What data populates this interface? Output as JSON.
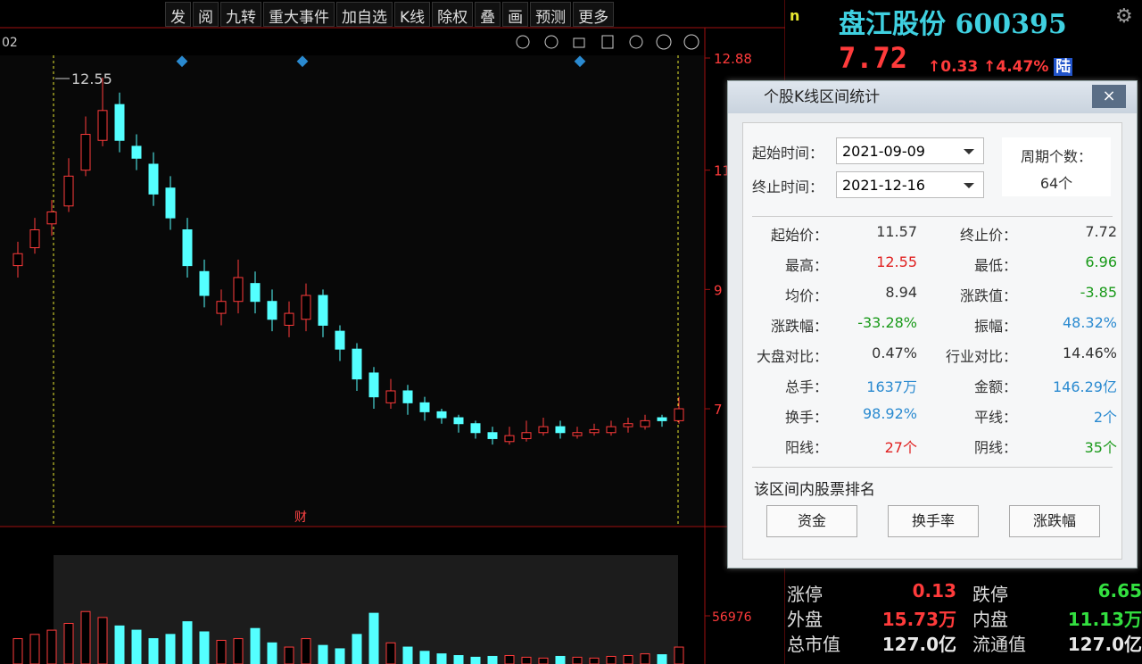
{
  "toolbar": {
    "buttons": [
      "发",
      "阅",
      "九转",
      "重大事件",
      "加自选",
      "K线",
      "除权",
      "叠",
      "画",
      "预测",
      "更多"
    ]
  },
  "quote": {
    "name": "盘江股份",
    "code": "600395",
    "price": "7.72",
    "change": "↑0.33",
    "change_pct": "↑4.47%",
    "badge": "陆",
    "corner": "n"
  },
  "kline": {
    "corner_label": "02",
    "high_label": "12.55",
    "marker": "财",
    "open": [
      9.4,
      9.7,
      10.1,
      10.4,
      11.0,
      11.5,
      12.1,
      11.4,
      11.1,
      10.7,
      10.0,
      9.3,
      8.6,
      8.8,
      9.1,
      8.8,
      8.4,
      8.5,
      8.9,
      8.3,
      8.0,
      7.6,
      7.1,
      7.3,
      7.1,
      6.95,
      6.85,
      6.75,
      6.6,
      6.45,
      6.5,
      6.6,
      6.7,
      6.55,
      6.6,
      6.6,
      6.7,
      6.7,
      6.85,
      6.8
    ],
    "close": [
      9.6,
      10.0,
      10.3,
      10.9,
      11.6,
      12.0,
      11.5,
      11.2,
      10.6,
      10.2,
      9.4,
      8.9,
      8.8,
      9.2,
      8.8,
      8.5,
      8.6,
      8.9,
      8.4,
      8.0,
      7.5,
      7.2,
      7.3,
      7.1,
      6.95,
      6.85,
      6.75,
      6.6,
      6.5,
      6.55,
      6.6,
      6.7,
      6.6,
      6.6,
      6.65,
      6.7,
      6.75,
      6.8,
      6.8,
      7.0
    ],
    "high": [
      9.8,
      10.2,
      10.5,
      11.2,
      11.9,
      12.55,
      12.3,
      11.6,
      11.3,
      10.9,
      10.2,
      9.5,
      9.0,
      9.5,
      9.3,
      9.0,
      8.8,
      9.1,
      9.0,
      8.4,
      8.1,
      7.7,
      7.5,
      7.4,
      7.2,
      7.0,
      6.9,
      6.8,
      6.7,
      6.7,
      6.8,
      6.85,
      6.8,
      6.7,
      6.75,
      6.8,
      6.85,
      6.9,
      6.9,
      7.2
    ],
    "low": [
      9.2,
      9.6,
      9.9,
      10.3,
      10.9,
      11.4,
      11.3,
      11.0,
      10.4,
      10.0,
      9.2,
      8.7,
      8.4,
      8.6,
      8.6,
      8.3,
      8.2,
      8.3,
      8.2,
      7.8,
      7.3,
      7.0,
      7.0,
      6.9,
      6.8,
      6.75,
      6.6,
      6.5,
      6.4,
      6.4,
      6.45,
      6.55,
      6.5,
      6.5,
      6.55,
      6.55,
      6.6,
      6.65,
      6.7,
      6.75
    ],
    "ylim": [
      5.25,
      12.88
    ],
    "yticks": [
      12.88,
      11,
      9,
      7
    ],
    "volume": [
      30000,
      35000,
      40000,
      48000,
      62000,
      55000,
      45000,
      40000,
      30000,
      35000,
      50000,
      38000,
      28000,
      30000,
      42000,
      25000,
      20000,
      30000,
      22000,
      18000,
      35000,
      60000,
      25000,
      20000,
      15000,
      12000,
      10000,
      8000,
      9000,
      10000,
      8000,
      7000,
      9000,
      8000,
      7000,
      9000,
      10000,
      12000,
      11000,
      20000
    ],
    "vlim": [
      0,
      56976
    ],
    "vticks": [
      56976
    ]
  },
  "dialog": {
    "title": "个股K线区间统计",
    "close": "×",
    "start_label": "起始时间：",
    "start": "2021-09-09",
    "end_label": "终止时间：",
    "end": "2021-12-16",
    "period_label": "周期个数：",
    "period": "64个",
    "stats": [
      [
        {
          "label": "起始价：",
          "value": "11.57",
          "color": "#333"
        },
        {
          "label": "终止价：",
          "value": "7.72",
          "color": "#333"
        }
      ],
      [
        {
          "label": "最高：",
          "value": "12.55",
          "color": "#e02020"
        },
        {
          "label": "最低：",
          "value": "6.96",
          "color": "#1a9a1a"
        }
      ],
      [
        {
          "label": "均价：",
          "value": "8.94",
          "color": "#333"
        },
        {
          "label": "涨跌值：",
          "value": "-3.85",
          "color": "#1a9a1a"
        }
      ],
      [
        {
          "label": "涨跌幅：",
          "value": "-33.28%",
          "color": "#1a9a1a"
        },
        {
          "label": "振幅：",
          "value": "48.32%",
          "color": "#2a8ad0"
        }
      ],
      [
        {
          "label": "大盘对比：",
          "value": "0.47%",
          "color": "#333"
        },
        {
          "label": "行业对比：",
          "value": "14.46%",
          "color": "#333"
        }
      ],
      [
        {
          "label": "总手：",
          "value": "1637万",
          "color": "#2a8ad0"
        },
        {
          "label": "金额：",
          "value": "146.29亿",
          "color": "#2a8ad0"
        }
      ],
      [
        {
          "label": "换手：",
          "value": "98.92%",
          "color": "#2a8ad0"
        },
        {
          "label": "平线：",
          "value": "2个",
          "color": "#2a8ad0"
        }
      ],
      [
        {
          "label": "阳线：",
          "value": "27个",
          "color": "#e02020"
        },
        {
          "label": "阴线：",
          "value": "35个",
          "color": "#1a9a1a"
        }
      ]
    ],
    "rank_title": "该区间内股票排名",
    "rank_buttons": [
      "资金",
      "换手率",
      "涨跌幅"
    ]
  },
  "info": {
    "rows": [
      [
        {
          "label": "涨停",
          "value": "0.13",
          "color": "#ff3b3b"
        },
        {
          "label": "跌停",
          "value": "6.65",
          "color": "#33e040"
        }
      ],
      [
        {
          "label": "外盘",
          "value": "15.73万",
          "color": "#ff3b3b"
        },
        {
          "label": "内盘",
          "value": "11.13万",
          "color": "#33e040"
        }
      ],
      [
        {
          "label": "总市值",
          "value": "127.0亿",
          "color": "#e8e8e8"
        },
        {
          "label": "流通值",
          "value": "127.0亿",
          "color": "#e8e8e8"
        }
      ]
    ]
  }
}
